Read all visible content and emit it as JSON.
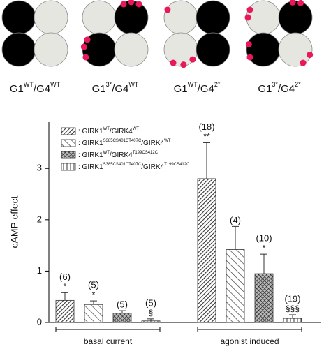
{
  "diagrams": [
    {
      "label_parts": [
        "G1",
        "WT",
        "/G4",
        "WT"
      ]
    },
    {
      "label_parts": [
        "G1",
        "3*",
        "/G4",
        "WT"
      ]
    },
    {
      "label_parts": [
        "G1",
        "WT",
        "/G4",
        "2*"
      ]
    },
    {
      "label_parts": [
        "G1",
        "3*",
        "/G4",
        "2*"
      ]
    }
  ],
  "chart_data": {
    "type": "bar",
    "y_label": "cAMP effect",
    "categories": [
      "basal current",
      "agonist induced"
    ],
    "ylim": [
      0,
      3.9
    ],
    "yticks": [
      0,
      1,
      2,
      3
    ],
    "series": [
      {
        "name_parts": [
          ": GIRK1",
          "WT",
          "/GIRK4",
          "WT"
        ],
        "pattern": "diag",
        "values": [
          0.43,
          2.8
        ],
        "errors": [
          0.15,
          0.7
        ],
        "n_labels": [
          "(6)",
          "(18)"
        ],
        "sig_labels": [
          "*",
          "**"
        ]
      },
      {
        "name_parts": [
          ": GIRK1",
          "S385CS401CT407C",
          "/GIRK4",
          "WT"
        ],
        "pattern": "back",
        "values": [
          0.35,
          1.42
        ],
        "errors": [
          0.07,
          0.45
        ],
        "n_labels": [
          "(5)",
          "(4)"
        ],
        "sig_labels": [
          "*",
          null
        ]
      },
      {
        "name_parts": [
          ": GIRK1",
          "WT",
          "/GIRK4",
          "T199CS412C"
        ],
        "pattern": "cross",
        "values": [
          0.18,
          0.95
        ],
        "errors": [
          0.05,
          0.38
        ],
        "n_labels": [
          "(5)",
          "(10)"
        ],
        "sig_labels": [
          null,
          "*"
        ]
      },
      {
        "name_parts": [
          ": GIRK1",
          "S385CS401CT407C",
          "/GIRK4",
          "T199CS412C"
        ],
        "pattern": "vert",
        "values": [
          0.03,
          0.08
        ],
        "errors": [
          0.04,
          0.07
        ],
        "n_labels": [
          "(5)",
          "(19)"
        ],
        "sig_labels": [
          "§",
          "§§§"
        ]
      }
    ]
  }
}
